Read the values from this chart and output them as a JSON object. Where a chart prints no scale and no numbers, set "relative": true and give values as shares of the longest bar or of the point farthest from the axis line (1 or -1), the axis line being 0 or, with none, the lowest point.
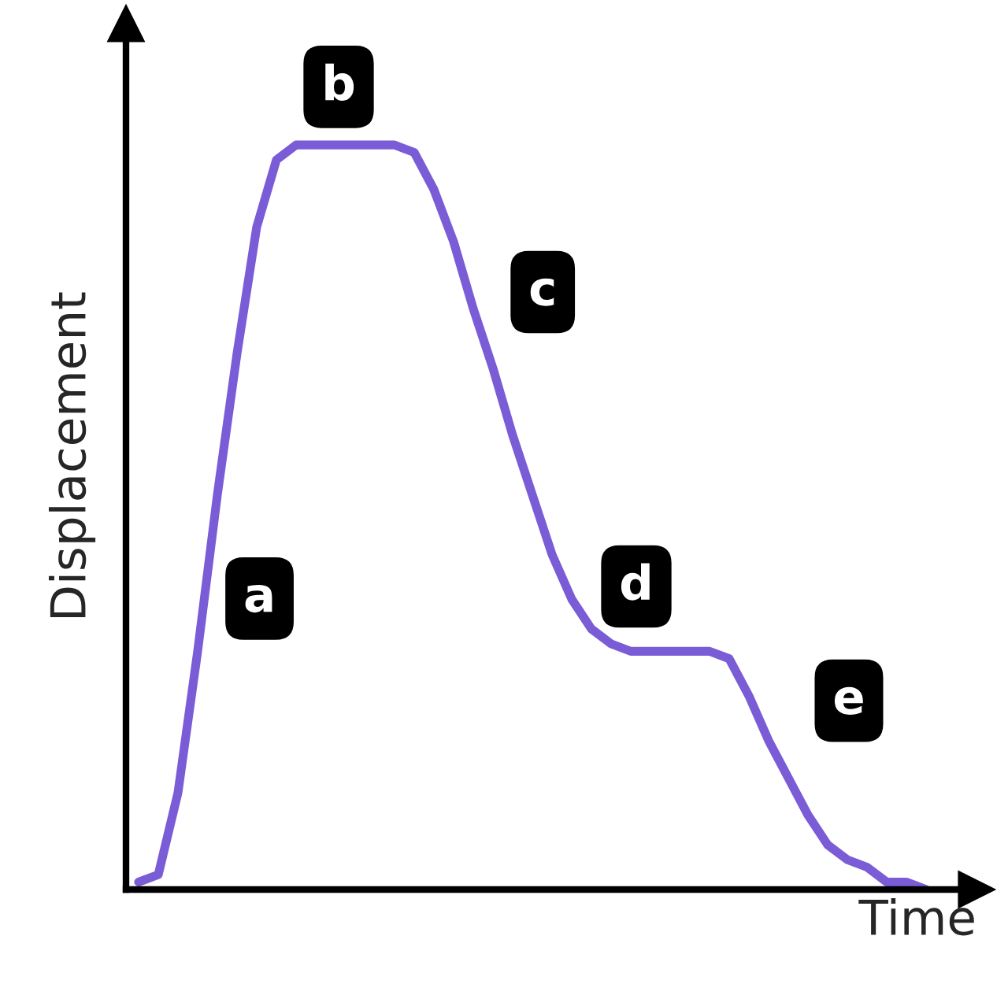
{
  "chart_data": {
    "type": "line",
    "relative": true,
    "xlabel": "Time",
    "ylabel": "Displacement",
    "categories": [
      null,
      null,
      null,
      null,
      null,
      null,
      null,
      null,
      null,
      null,
      null,
      null,
      null,
      null,
      null,
      null,
      null,
      null,
      null,
      null,
      null,
      null,
      null,
      null,
      null,
      null,
      null,
      null,
      null,
      null,
      null,
      null,
      null,
      null,
      null,
      null,
      null,
      null,
      null,
      null,
      null
    ],
    "series": [
      {
        "color": "#7a5cd6",
        "values": [
          0.01,
          0.02,
          0.13,
          0.32,
          0.53,
          0.72,
          0.89,
          0.98,
          1,
          1,
          1,
          1,
          1,
          1,
          0.99,
          0.94,
          0.87,
          0.78,
          0.7,
          0.61,
          0.53,
          0.45,
          0.39,
          0.35,
          0.33,
          0.32,
          0.32,
          0.32,
          0.32,
          0.32,
          0.31,
          0.26,
          0.2,
          0.15,
          0.1,
          0.06,
          0.04,
          0.03,
          0.01,
          0.01,
          0.0
        ]
      }
    ],
    "annotations": [
      "a",
      "b",
      "c",
      "d",
      "e"
    ],
    "marker": "none",
    "line_style": "solid"
  }
}
